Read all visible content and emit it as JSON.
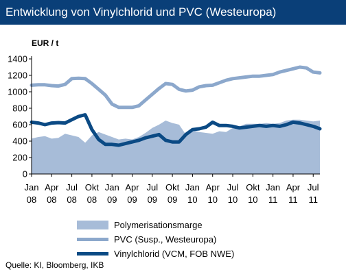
{
  "title": "Entwicklung von Vinylchlorid und PVC (Westeuropa)",
  "source": "Quelle: KI, Bloomberg, IKB",
  "chart_data": {
    "type": "line",
    "ylabel": "EUR / t",
    "ylim": [
      0,
      1400
    ],
    "yticks": [
      0,
      200,
      400,
      600,
      800,
      1000,
      1200,
      1400
    ],
    "x_tick_labels": [
      {
        "label": [
          "Jan",
          "08"
        ],
        "index": 0
      },
      {
        "label": [
          "Apr",
          "08"
        ],
        "index": 3
      },
      {
        "label": [
          "Jul",
          "08"
        ],
        "index": 6
      },
      {
        "label": [
          "Okt",
          "08"
        ],
        "index": 9
      },
      {
        "label": [
          "Jan",
          "09"
        ],
        "index": 12
      },
      {
        "label": [
          "Apr",
          "09"
        ],
        "index": 15
      },
      {
        "label": [
          "Jul",
          "09"
        ],
        "index": 18
      },
      {
        "label": [
          "Okt",
          "09"
        ],
        "index": 21
      },
      {
        "label": [
          "Jan",
          "10"
        ],
        "index": 24
      },
      {
        "label": [
          "Apr",
          "10"
        ],
        "index": 27
      },
      {
        "label": [
          "Jul",
          "10"
        ],
        "index": 30
      },
      {
        "label": [
          "Okt",
          "10"
        ],
        "index": 33
      },
      {
        "label": [
          "Jan",
          "11"
        ],
        "index": 36
      },
      {
        "label": [
          "Apr",
          "11"
        ],
        "index": 39
      },
      {
        "label": [
          "Jul",
          "11"
        ],
        "index": 42
      }
    ],
    "x_count": 44,
    "grid": false,
    "legend_position": "bottom",
    "series": [
      {
        "name": "Polymerisationsmarge",
        "kind": "area",
        "color": "#a7bcd8",
        "values": [
          430,
          450,
          460,
          430,
          440,
          490,
          470,
          450,
          380,
          470,
          510,
          480,
          450,
          420,
          430,
          420,
          450,
          500,
          560,
          600,
          650,
          620,
          600,
          480,
          530,
          510,
          500,
          490,
          520,
          510,
          560,
          580,
          610,
          610,
          610,
          620,
          610,
          620,
          650,
          660,
          660,
          650,
          640,
          650
        ]
      },
      {
        "name": "PVC (Susp., Westeuropa)",
        "kind": "line",
        "color": "#8ca8cc",
        "values": [
          1080,
          1085,
          1085,
          1075,
          1070,
          1090,
          1160,
          1165,
          1160,
          1100,
          1030,
          960,
          850,
          810,
          810,
          810,
          830,
          900,
          970,
          1040,
          1100,
          1090,
          1030,
          1010,
          1020,
          1060,
          1075,
          1080,
          1110,
          1140,
          1160,
          1170,
          1180,
          1190,
          1190,
          1200,
          1210,
          1240,
          1260,
          1280,
          1300,
          1290,
          1240,
          1230
        ]
      },
      {
        "name": "Vinylchlorid (VCM, FOB NWE)",
        "kind": "line",
        "color": "#0b4a84",
        "values": [
          630,
          620,
          600,
          620,
          625,
          620,
          660,
          700,
          720,
          540,
          420,
          360,
          360,
          350,
          370,
          390,
          410,
          440,
          460,
          480,
          410,
          390,
          390,
          480,
          540,
          550,
          570,
          630,
          590,
          590,
          580,
          560,
          570,
          580,
          590,
          580,
          590,
          580,
          600,
          630,
          620,
          600,
          580,
          550
        ]
      }
    ]
  }
}
